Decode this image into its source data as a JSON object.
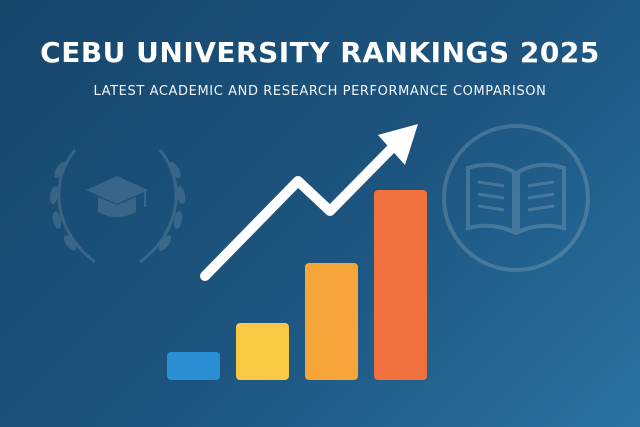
{
  "header": {
    "title": "CEBU UNIVERSITY RANKINGS 2025",
    "subtitle": "LATEST ACADEMIC AND RESEARCH PERFORMANCE COMPARISON"
  },
  "icons": {
    "left": "graduation-cap-laurel-icon",
    "right": "open-book-icon",
    "trend": "trend-arrow-icon"
  },
  "colors": {
    "background": "#1d5580",
    "bars": [
      "#2b8fd6",
      "#f9c943",
      "#f6a638",
      "#f0703e"
    ],
    "arrow": "#ffffff"
  },
  "chart_data": {
    "type": "bar",
    "categories": [
      "",
      "",
      "",
      ""
    ],
    "values": [
      28,
      57,
      117,
      190
    ],
    "ylim": [
      0,
      200
    ],
    "grid": false,
    "legend": "none",
    "trend_arrow": true
  }
}
